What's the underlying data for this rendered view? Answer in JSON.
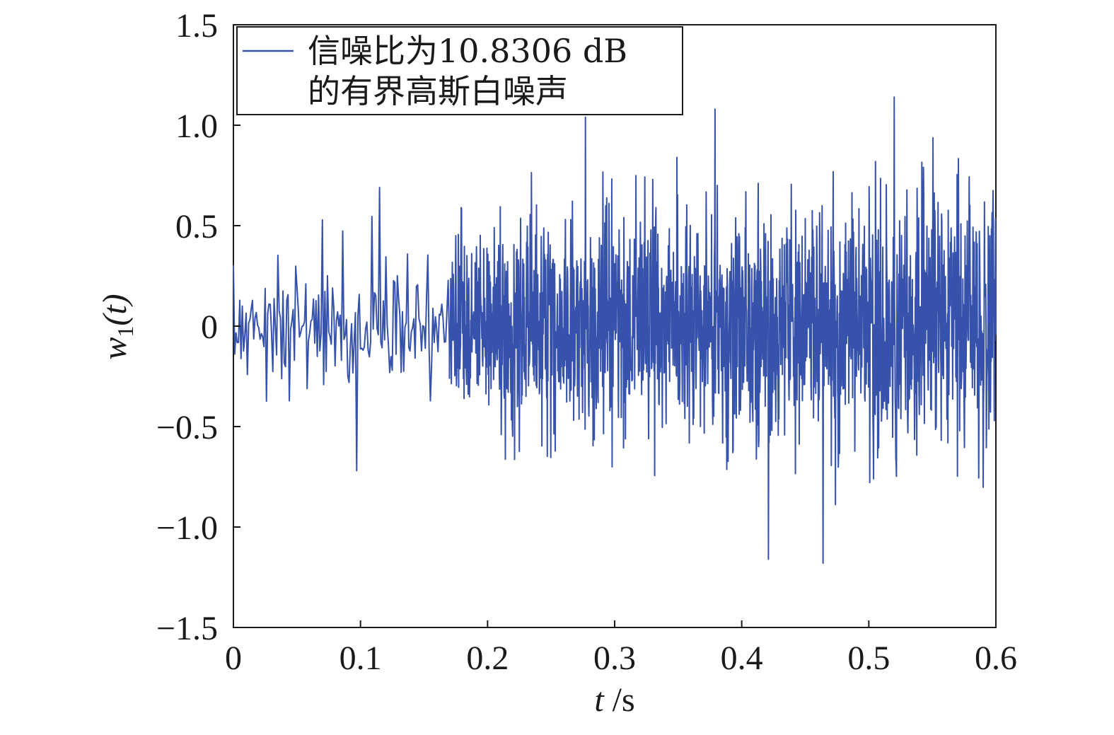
{
  "chart_data": {
    "type": "line",
    "title": "",
    "xlabel": {
      "var": "t",
      "unit": " /s"
    },
    "ylabel": {
      "var": "w",
      "sub": "1",
      "arg": "(t)"
    },
    "xlim": [
      0,
      0.6
    ],
    "ylim": [
      -1.5,
      1.5
    ],
    "xticks": [
      0,
      0.1,
      0.2,
      0.3,
      0.4,
      0.5,
      0.6
    ],
    "xtick_labels": [
      "0",
      "0.1",
      "0.2",
      "0.3",
      "0.4",
      "0.5",
      "0.6"
    ],
    "yticks": [
      1.5,
      1.0,
      0.5,
      0,
      -0.5,
      -1.0,
      -1.5
    ],
    "ytick_labels": [
      "1.5",
      "1.0",
      "0.5",
      "0",
      "−0.5",
      "−1.0",
      "−1.5"
    ],
    "grid": false,
    "legend": {
      "position": "top-left",
      "lines": [
        "信噪比为10.8306 dB",
        "的有界高斯白噪声"
      ]
    },
    "series": [
      {
        "color": "#3652ab",
        "description": "bounded Gaussian white noise, amplitude envelope growing over time",
        "peaks": [
          {
            "t": 0.115,
            "v": 0.69
          },
          {
            "t": 0.097,
            "v": -0.72
          },
          {
            "t": 0.277,
            "v": 1.04
          },
          {
            "t": 0.379,
            "v": 1.08
          },
          {
            "t": 0.52,
            "v": 1.14
          },
          {
            "t": 0.421,
            "v": -1.16
          },
          {
            "t": 0.464,
            "v": -1.18
          }
        ]
      }
    ]
  }
}
